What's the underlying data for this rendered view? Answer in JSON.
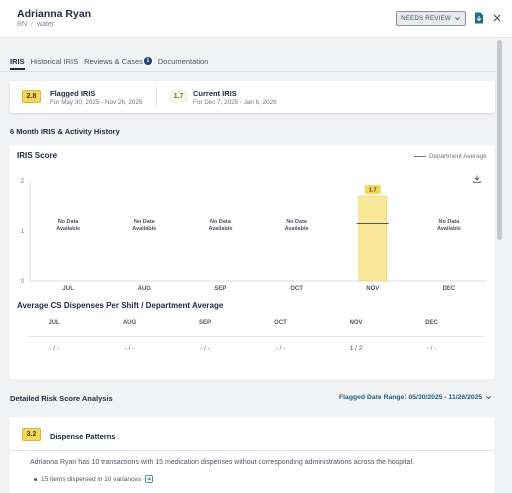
{
  "header": {
    "name": "Adrianna Ryan",
    "role": "RN",
    "unit": "water",
    "review_status": "NEEDS REVIEW"
  },
  "tabs": [
    {
      "label": "IRIS",
      "active": true
    },
    {
      "label": "Historical IRIS"
    },
    {
      "label": "Reviews & Cases",
      "badge": "1"
    },
    {
      "label": "Documentation"
    }
  ],
  "iris": {
    "flagged": {
      "score": "2.8",
      "title": "Flagged IRIS",
      "range": "For May 30, 2025 - Nov 26, 2025"
    },
    "current": {
      "score": "1.7",
      "title": "Current IRIS",
      "range": "For Dec 7, 2025 - Jan 6, 2026"
    }
  },
  "history": {
    "section_title": "6 Month IRIS & Activity History",
    "chart_title": "IRIS Score",
    "legend": "Department Average",
    "avg_title": "Average CS Dispenses Per Shift / Department Average",
    "no_data": [
      "No Data",
      "Available"
    ],
    "avg_table": {
      "months": [
        "JUL",
        "AUG",
        "SEP",
        "OCT",
        "NOV",
        "DEC"
      ],
      "values": [
        "- / -",
        "- / -",
        "- / -",
        "- / -",
        "1 / 2",
        "- / -"
      ]
    }
  },
  "chart_data": {
    "type": "bar",
    "title": "IRIS Score",
    "categories": [
      "JUL",
      "AUG",
      "SEP",
      "OCT",
      "NOV",
      "DEC"
    ],
    "values": [
      null,
      null,
      null,
      null,
      1.7,
      null
    ],
    "value_labels": [
      "",
      "",
      "",
      "",
      "1.7",
      ""
    ],
    "department_average": [
      null,
      null,
      null,
      null,
      1.15,
      null
    ],
    "yticks": [
      0,
      1,
      2
    ],
    "ylim": [
      0,
      2
    ],
    "bar_color": "#f9e79a",
    "bar_border": "#f1d060",
    "legend": "Department Average"
  },
  "risk": {
    "title": "Detailed Risk Score Analysis",
    "range": "Flagged Date Range: 05/30/2025 - 11/26/2025"
  },
  "dispense": {
    "score": "3.2",
    "title": "Dispense Patterns",
    "text": "Adrianna Ryan has 10 transactions with 15 medication dispenses without corresponding administrations across the hospital.",
    "bullet": "15 items dispersed in 10 variances"
  }
}
